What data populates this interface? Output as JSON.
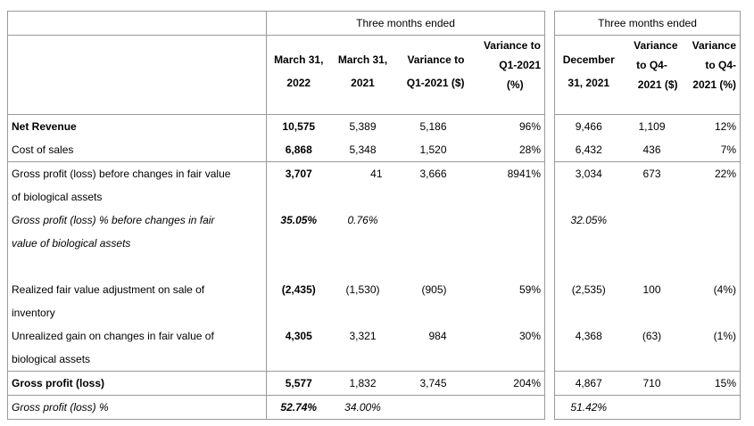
{
  "header": {
    "group_left": "Three months ended",
    "group_right": "Three months ended",
    "cols": [
      [
        "March 31,",
        "2022"
      ],
      [
        "March 31,",
        "2021"
      ],
      [
        "Variance to",
        "Q1-2021 ($)"
      ],
      [
        "Variance to",
        "Q1-2021",
        "(%)"
      ],
      [
        "December",
        "31, 2021"
      ],
      [
        "Variance",
        "to Q4-",
        "2021 ($)"
      ],
      [
        "Variance",
        "to Q4-",
        "2021 (%)"
      ]
    ]
  },
  "rows": [
    {
      "label": [
        "Net Revenue"
      ],
      "vals": [
        "10,575",
        "5,389",
        "5,186",
        "96%",
        "9,466",
        "1,109",
        "12%"
      ],
      "bold": true
    },
    {
      "label": [
        "Cost of sales"
      ],
      "vals": [
        "6,868",
        "5,348",
        "1,520",
        "28%",
        "6,432",
        "436",
        "7%"
      ]
    },
    {
      "label": [
        "Gross profit (loss) before changes in fair value",
        "of biological assets"
      ],
      "vals": [
        "3,707",
        "41",
        "3,666",
        "8941%",
        "3,034",
        "673",
        "22%"
      ]
    },
    {
      "label": [
        "Gross profit (loss) % before changes in fair",
        "value of biological assets"
      ],
      "vals": [
        "35.05%",
        "0.76%",
        "",
        "",
        "32.05%",
        "",
        ""
      ],
      "italic": true
    },
    {
      "label": [
        "Realized fair value adjustment on sale of",
        "inventory"
      ],
      "vals": [
        "(2,435)",
        "(1,530)",
        "(905)",
        "59%",
        "(2,535)",
        "100",
        "(4%)"
      ]
    },
    {
      "label": [
        "Unrealized gain on changes in fair value of",
        "biological assets"
      ],
      "vals": [
        "4,305",
        "3,321",
        "984",
        "30%",
        "4,368",
        "(63)",
        "(1%)"
      ]
    },
    {
      "label": [
        "Gross profit (loss)"
      ],
      "vals": [
        "5,577",
        "1,832",
        "3,745",
        "204%",
        "4,867",
        "710",
        "15%"
      ],
      "bold": true
    },
    {
      "label": [
        "Gross profit (loss) %"
      ],
      "vals": [
        "52.74%",
        "34.00%",
        "",
        "",
        "51.42%",
        "",
        ""
      ],
      "italic": true
    }
  ]
}
